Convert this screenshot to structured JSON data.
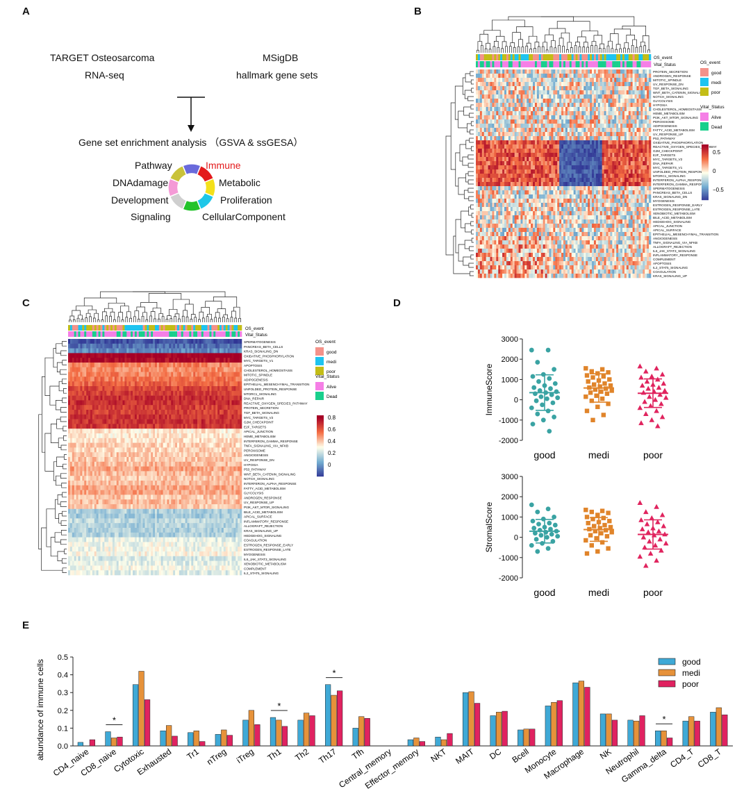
{
  "panels": {
    "A": {
      "label": "A",
      "source_left": [
        "TARGET Osteosarcoma",
        "RNA-seq"
      ],
      "source_right": [
        "MSigDB",
        "hallmark gene sets"
      ],
      "analysis": "Gene set enrichment analysis （GSVA & ssGESA）",
      "categories": [
        {
          "name": "Pathway",
          "color": "#6a6adb"
        },
        {
          "name": "Immune",
          "color": "#e31a1c"
        },
        {
          "name": "Metabolic",
          "color": "#f4e01a"
        },
        {
          "name": "Proliferation",
          "color": "#1fc7e8"
        },
        {
          "name": "CellularComponent",
          "color": "#22c32a"
        },
        {
          "name": "Signaling",
          "color": "#cfcfcf"
        },
        {
          "name": "Development",
          "color": "#f49ad6"
        },
        {
          "name": "DNAdamage",
          "color": "#c9c23a"
        }
      ],
      "highlight_color": "#e31a1c"
    },
    "B": {
      "label": "B",
      "annot_rows": [
        "OS_event",
        "Vital_Status"
      ],
      "legend_os_title": "OS_event",
      "legend_os": [
        {
          "name": "good",
          "color": "#f4928a"
        },
        {
          "name": "medi",
          "color": "#1ec4f0"
        },
        {
          "name": "poor",
          "color": "#c3bd16"
        }
      ],
      "legend_vital_title": "Vital_Status",
      "legend_vital": [
        {
          "name": "Alive",
          "color": "#f57fe6"
        },
        {
          "name": "Dead",
          "color": "#19cf8c"
        }
      ],
      "scale_ticks": [
        "0.5",
        "0",
        "−0.5"
      ],
      "rows": [
        "PROTEIN_SECRETION",
        "ANDROGEN_RESPONSE",
        "MITOTIC_SPINDLE",
        "UV_RESPONSE_DN",
        "TGF_BETA_SIGNALING",
        "WNT_BETA_CATENIN_SIGNALING",
        "NOTCH_SIGNALING",
        "GLYCOLYSIS",
        "HYPOXIA",
        "CHOLESTEROL_HOMEOSTASIS",
        "HEME_METABOLISM",
        "PI3K_AKT_MTOR_SIGNALING",
        "PEROXISOME",
        "ADIPOGENESIS",
        "FATTY_ACID_METABOLISM",
        "UV_RESPONSE_UP",
        "P53_PATHWAY",
        "OXIDATIVE_PHOSPHORYLATION",
        "REACTIVE_OXYGEN_SPECIES_PATHWAY",
        "G2M_CHECKPOINT",
        "E2F_TARGETS",
        "MYC_TARGETS_V2",
        "DNA_REPAIR",
        "MYC_TARGETS_V1",
        "UNFOLDED_PROTEIN_RESPONSE",
        "MTORC1_SIGNALING",
        "INTERFERON_ALPHA_RESPONSE",
        "INTERFERON_GAMMA_RESPONSE",
        "SPERMATOGENESIS",
        "PANCREAS_BETA_CELLS",
        "KRAS_SIGNALING_DN",
        "MYOGENESIS",
        "ESTROGEN_RESPONSE_EARLY",
        "ESTROGEN_RESPONSE_LATE",
        "XENOBIOTIC_METABOLISM",
        "BILE_ACID_METABOLISM",
        "HEDGEHOG_SIGNALING",
        "APICAL_JUNCTION",
        "APICAL_SURFACE",
        "EPITHELIAL_MESENCHYMAL_TRANSITION",
        "ANGIOGENESIS",
        "TNFA_SIGNALING_VIA_NFKB",
        "ALLOGRAFT_REJECTION",
        "IL6_JAK_STAT3_SIGNALING",
        "INFLAMMATORY_RESPONSE",
        "COMPLEMENT",
        "APOPTOSIS",
        "IL2_STAT5_SIGNALING",
        "COAGULATION",
        "KRAS_SIGNALING_UP"
      ]
    },
    "C": {
      "label": "C",
      "annot_rows": [
        "OS_event",
        "Vital_Status"
      ],
      "legend_os_title": "OS_event",
      "legend_os": [
        {
          "name": "good",
          "color": "#f4928a"
        },
        {
          "name": "medi",
          "color": "#1ec4f0"
        },
        {
          "name": "poor",
          "color": "#c3bd16"
        }
      ],
      "legend_vital_title": "Vital_Status",
      "legend_vital": [
        {
          "name": "Alive",
          "color": "#f57fe6"
        },
        {
          "name": "Dead",
          "color": "#19cf8c"
        }
      ],
      "scale_ticks": [
        "0.8",
        "0.6",
        "0.4",
        "0.2",
        "0"
      ],
      "rows": [
        "SPERMATOGENESIS",
        "PANCREAS_BETA_CELLS",
        "KRAS_SIGNALING_DN",
        "OXIDATIVE_PHOSPHORYLATION",
        "MYC_TARGETS_V1",
        "APOPTOSIS",
        "CHOLESTEROL_HOMEOSTASIS",
        "MITOTIC_SPINDLE",
        "ADIPOGENESIS",
        "EPITHELIAL_MESENCHYMAL_TRANSITION",
        "UNFOLDED_PROTEIN_RESPONSE",
        "MTORC1_SIGNALING",
        "DNA_REPAIR",
        "REACTIVE_OXYGEN_SPECIES_PATHWAY",
        "PROTEIN_SECRETION",
        "TGF_BETA_SIGNALING",
        "MYC_TARGETS_V2",
        "G2M_CHECKPOINT",
        "E2F_TARGETS",
        "APICAL_JUNCTION",
        "HEME_METABOLISM",
        "INTERFERON_GAMMA_RESPONSE",
        "TNFA_SIGNALING_VIA_NFKB",
        "PEROXISOME",
        "ANGIOGENESIS",
        "UV_RESPONSE_DN",
        "HYPOXIA",
        "P53_PATHWAY",
        "WNT_BETA_CATENIN_SIGNALING",
        "NOTCH_SIGNALING",
        "INTERFERON_ALPHA_RESPONSE",
        "FATTY_ACID_METABOLISM",
        "GLYCOLYSIS",
        "ANDROGEN_RESPONSE",
        "UV_RESPONSE_UP",
        "PI3K_AKT_MTOR_SIGNALING",
        "BILE_ACID_METABOLISM",
        "APICAL_SURFACE",
        "INFLAMMATORY_RESPONSE",
        "ALLOGRAFT_REJECTION",
        "KRAS_SIGNALING_UP",
        "HEDGEHOG_SIGNALING",
        "COAGULATION",
        "ESTROGEN_RESPONSE_EARLY",
        "ESTROGEN_RESPONSE_LATE",
        "MYOGENESIS",
        "IL6_JAK_STAT3_SIGNALING",
        "XENOBIOTIC_METABOLISM",
        "COMPLEMENT",
        "IL2_STAT5_SIGNALING"
      ]
    },
    "D": {
      "label": "D"
    },
    "E": {
      "label": "E"
    }
  },
  "chart_data": [
    {
      "type": "scatter",
      "title": "",
      "ylabel": "ImmuneScore",
      "xlabel": "",
      "categories": [
        "good",
        "medi",
        "poor"
      ],
      "ylim": [
        -2000,
        3000
      ],
      "yticks": [
        -2000,
        -1000,
        0,
        1000,
        2000,
        3000
      ],
      "colors": [
        "#3aa3a3",
        "#e0842a",
        "#e0245e"
      ],
      "markers": [
        "circle",
        "square",
        "triangle"
      ],
      "mean": [
        350,
        580,
        320
      ],
      "sd_upper": [
        1230,
        1280,
        1030
      ],
      "sd_lower": [
        -520,
        -120,
        -380
      ],
      "points": [
        [
          2450,
          2450,
          1850,
          1500,
          1250,
          1150,
          1050,
          900,
          800,
          700,
          600,
          550,
          450,
          400,
          350,
          300,
          250,
          150,
          100,
          50,
          -50,
          -150,
          -250,
          -400,
          -550,
          -700,
          -850,
          -1000,
          -1200,
          -1550
        ],
        [
          1550,
          1500,
          1400,
          1350,
          1300,
          1200,
          1150,
          1100,
          1000,
          950,
          900,
          800,
          750,
          700,
          650,
          600,
          550,
          500,
          450,
          400,
          350,
          300,
          200,
          150,
          50,
          -50,
          -200,
          -350,
          -550,
          -750,
          -1000
        ],
        [
          1650,
          1550,
          1400,
          1250,
          1150,
          1100,
          1000,
          900,
          800,
          750,
          700,
          600,
          550,
          450,
          400,
          350,
          250,
          150,
          100,
          0,
          -100,
          -200,
          -300,
          -400,
          -550,
          -700,
          -850,
          -1000,
          -1150,
          -1300
        ]
      ]
    },
    {
      "type": "scatter",
      "title": "",
      "ylabel": "StromalScore",
      "xlabel": "",
      "categories": [
        "good",
        "medi",
        "poor"
      ],
      "ylim": [
        -2000,
        3000
      ],
      "yticks": [
        -2000,
        -1000,
        0,
        1000,
        2000,
        3000
      ],
      "colors": [
        "#3aa3a3",
        "#e0842a",
        "#e0245e"
      ],
      "markers": [
        "circle",
        "square",
        "triangle"
      ],
      "mean": [
        300,
        380,
        140
      ],
      "sd_upper": [
        880,
        970,
        860
      ],
      "sd_lower": [
        -280,
        -200,
        -580
      ],
      "points": [
        [
          1600,
          1400,
          1250,
          1000,
          900,
          800,
          700,
          650,
          600,
          500,
          450,
          400,
          350,
          300,
          250,
          200,
          150,
          100,
          50,
          0,
          -100,
          -200,
          -300,
          -400,
          -550,
          -700
        ],
        [
          1350,
          1300,
          1250,
          1200,
          1100,
          1000,
          950,
          900,
          800,
          750,
          700,
          600,
          550,
          500,
          450,
          400,
          350,
          300,
          250,
          200,
          100,
          50,
          -50,
          -150,
          -250,
          -400,
          -550,
          -700,
          -800
        ],
        [
          1700,
          1500,
          1250,
          1100,
          950,
          850,
          750,
          650,
          550,
          450,
          400,
          300,
          250,
          150,
          100,
          0,
          -100,
          -200,
          -300,
          -400,
          -500,
          -650,
          -800,
          -950,
          -1150,
          -1400
        ]
      ]
    },
    {
      "type": "bar",
      "title": "",
      "xlabel": "",
      "ylabel": "abundance of immune cells",
      "ylim": [
        0,
        0.5
      ],
      "yticks": [
        "0.0",
        "0.1",
        "0.2",
        "0.3",
        "0.4",
        "0.5"
      ],
      "categories": [
        "CD4_naive",
        "CD8_naive",
        "Cytotoxic",
        "Exhausted",
        "Tr1",
        "nTreg",
        "iTreg",
        "Th1",
        "Th2",
        "Th17",
        "Tfh",
        "Central_memory",
        "Effector_memory",
        "NKT",
        "MAIT",
        "DC",
        "Bcell",
        "Monocyte",
        "Macrophage",
        "NK",
        "Neutrophil",
        "Gamma_delta",
        "CD4_T",
        "CD8_T"
      ],
      "series": [
        {
          "name": "good",
          "color": "#3fa9d6",
          "values": [
            0.02,
            0.08,
            0.345,
            0.085,
            0.075,
            0.065,
            0.145,
            0.16,
            0.145,
            0.345,
            0.1,
            0.0,
            0.035,
            0.05,
            0.3,
            0.17,
            0.09,
            0.225,
            0.355,
            0.18,
            0.145,
            0.085,
            0.14,
            0.19
          ]
        },
        {
          "name": "medi",
          "color": "#e6923a",
          "values": [
            0.0,
            0.045,
            0.42,
            0.115,
            0.085,
            0.09,
            0.2,
            0.145,
            0.185,
            0.285,
            0.165,
            0.0,
            0.045,
            0.035,
            0.305,
            0.19,
            0.095,
            0.245,
            0.365,
            0.18,
            0.14,
            0.085,
            0.165,
            0.215
          ]
        },
        {
          "name": "poor",
          "color": "#e02260",
          "values": [
            0.035,
            0.05,
            0.26,
            0.055,
            0.025,
            0.06,
            0.12,
            0.11,
            0.17,
            0.31,
            0.155,
            0.0,
            0.025,
            0.07,
            0.24,
            0.195,
            0.095,
            0.255,
            0.33,
            0.145,
            0.17,
            0.045,
            0.14,
            0.175
          ]
        }
      ],
      "significance_marks": [
        {
          "category": "CD8_naive",
          "label": "*"
        },
        {
          "category": "Th1",
          "label": "*"
        },
        {
          "category": "Th17",
          "label": "*"
        },
        {
          "category": "Gamma_delta",
          "label": "*"
        }
      ],
      "legend_position": "top-right"
    }
  ]
}
